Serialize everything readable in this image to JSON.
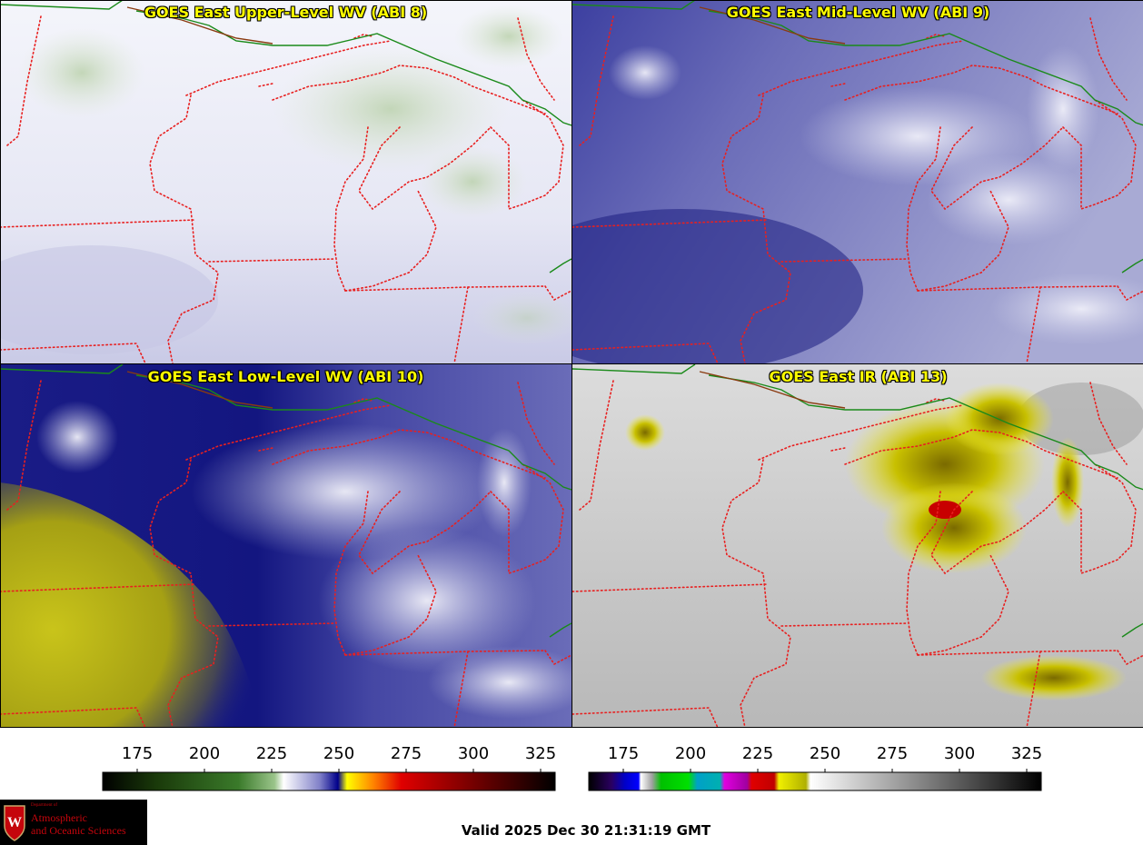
{
  "panels": [
    {
      "title": "GOES East Upper-Level WV (ABI 8)"
    },
    {
      "title": "GOES East Mid-Level WV (ABI 9)"
    },
    {
      "title": "GOES East Low-Level WV (ABI 10)"
    },
    {
      "title": "GOES East IR (ABI 13)"
    }
  ],
  "colorbars": [
    {
      "ticks": [
        "175",
        "200",
        "225",
        "250",
        "275",
        "300",
        "325"
      ]
    },
    {
      "ticks": [
        "175",
        "200",
        "225",
        "250",
        "275",
        "300",
        "325"
      ]
    }
  ],
  "valid_time": "Valid 2025 Dec 30 21:31:19 GMT",
  "logo": {
    "dept_line1": "Department of",
    "line1": "Atmospheric",
    "line2": "and Oceanic Sciences",
    "seal_letter": "W"
  },
  "colors": {
    "border_state": "#e02020",
    "border_country": "#1a8a1a",
    "title_text": "#ffff00"
  }
}
